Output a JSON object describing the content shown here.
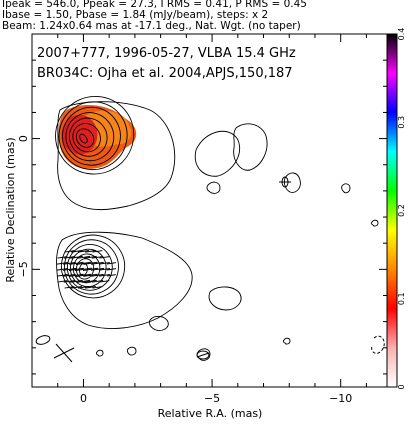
{
  "header": {
    "line1": "Ipeak = 546.0, Ppeak = 27.3, I RMS = 0.41, P RMS = 0.45",
    "line2": "Ibase = 1.50, Pbase = 1.84 (mJy/beam), steps: x 2",
    "line3": "Beam: 1.24x0.64 mas at -17.1 deg., Nat. Wgt. (no taper)"
  },
  "chart_data": {
    "type": "heatmap",
    "annotation_line1": "2007+777, 1996-05-27, VLBA 15.4 GHz",
    "annotation_line2": "BR034C: Ojha et al. 2004,APJS,150,187",
    "xlabel": "Relative R.A. (mas)",
    "ylabel": "Relative Declination (mas)",
    "xlim": [
      2.0,
      -11.8
    ],
    "ylim": [
      -9.5,
      4.0
    ],
    "x_ticks": [
      0,
      -5,
      -10
    ],
    "x_tick_labels": [
      "0",
      "−5",
      "−10"
    ],
    "y_ticks": [
      0,
      -5
    ],
    "y_tick_labels": [
      "0",
      "−5"
    ],
    "colorbar": {
      "ticks": [
        0,
        0.1,
        0.2,
        0.3,
        0.4
      ],
      "tick_labels": [
        "0",
        "0.1",
        "0.2",
        "0.3",
        "0.4"
      ],
      "range": [
        0,
        0.4
      ],
      "stops": [
        "#ffffff",
        "#ffb0b0",
        "#ff0000",
        "#ff8800",
        "#ffff00",
        "#00ff00",
        "#00ffff",
        "#0000ff",
        "#ff00ff",
        "#000000"
      ]
    },
    "polarization_fill": {
      "region": "core",
      "colors": [
        "#e02020",
        "#ee5a14",
        "#f5841c"
      ]
    },
    "components": [
      {
        "name": "core",
        "x": 0.0,
        "y": 0.0,
        "levels": 8
      },
      {
        "name": "jet-knot",
        "x": 0.0,
        "y": -5.0,
        "levels": 7
      }
    ]
  }
}
